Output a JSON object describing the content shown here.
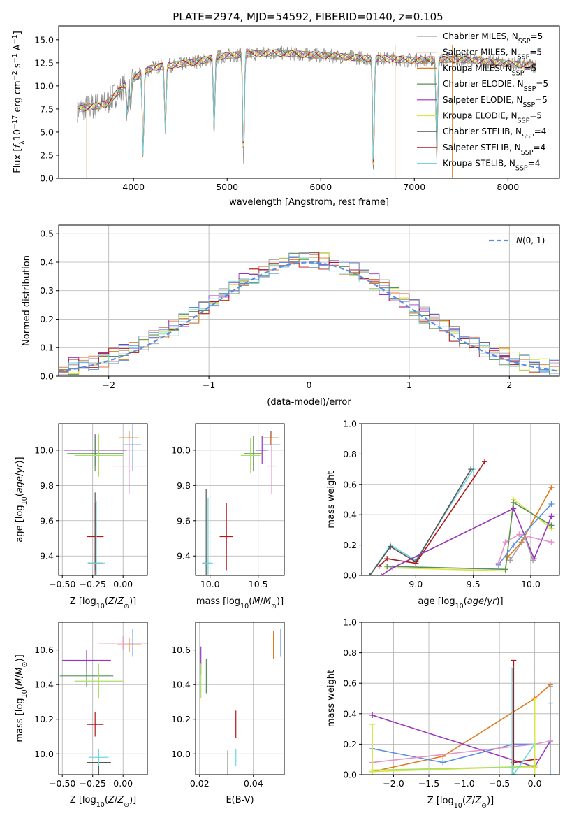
{
  "title": "PLATE=2974, MJD=54592, FIBERID=0140, z=0.105",
  "colors": {
    "chabrier_miles": "#a0a0a0",
    "salpeter_miles": "#e6734a",
    "kroupa_miles": "#e07a1f",
    "chabrier_elodie": "#5a8f5a",
    "salpeter_elodie": "#9b35c0",
    "kroupa_elodie": "#d6e645",
    "chabrier_stelib": "#555555",
    "salpeter_stelib": "#b01818",
    "kroupa_stelib": "#6fd6e0",
    "blue": "#5a8ee0",
    "pink": "#e890c8",
    "green_light": "#a8e060",
    "normal": "#5a8ee0"
  },
  "chart_data": [
    {
      "id": "spectrum",
      "type": "line",
      "title": "PLATE=2974, MJD=54592, FIBERID=0140, z=0.105",
      "xlabel": "wavelength [Angstrom, rest frame]",
      "ylabel": "Flux [f_λ 10^-17 erg cm^-2 s^-1 A^-1]",
      "xlim": [
        3200,
        8550
      ],
      "ylim": [
        0,
        16.5
      ],
      "xticks": [
        4000,
        5000,
        6000,
        7000,
        8000
      ],
      "yticks": [
        0.0,
        2.5,
        5.0,
        7.5,
        10.0,
        12.5,
        15.0
      ],
      "legend_position": "upper-right",
      "legend": [
        "Chabrier MILES, N_SSP=5",
        "Salpeter MILES, N_SSP=5",
        "Kroupa MILES, N_SSP=5",
        "Chabrier ELODIE, N_SSP=5",
        "Salpeter ELODIE, N_SSP=5",
        "Kroupa ELODIE, N_SSP=5",
        "Chabrier STELIB, N_SSP=4",
        "Salpeter STELIB, N_SSP=4",
        "Kroupa STELIB, N_SSP=4"
      ],
      "data_x_range": [
        3400,
        8300
      ],
      "continuum": [
        [
          3400,
          7.5
        ],
        [
          3700,
          8.0
        ],
        [
          3950,
          10.5
        ],
        [
          4200,
          12.0
        ],
        [
          4600,
          12.5
        ],
        [
          5000,
          13.3
        ],
        [
          5500,
          13.6
        ],
        [
          6000,
          13.3
        ],
        [
          6500,
          13.0
        ],
        [
          7000,
          12.8
        ],
        [
          7500,
          12.9
        ],
        [
          8000,
          12.4
        ],
        [
          8300,
          12.2
        ]
      ],
      "dips": [
        [
          3934,
          3.5
        ],
        [
          3969,
          3.0
        ],
        [
          4102,
          9.0
        ],
        [
          4340,
          7.0
        ],
        [
          4861,
          8.0
        ],
        [
          5175,
          11.5
        ],
        [
          6563,
          12.0
        ],
        [
          7240,
          10.5
        ]
      ],
      "spikes_to_zero": [
        3920,
        5062,
        6795,
        7405
      ],
      "left_start_salpeter": 3500
    },
    {
      "id": "residuals",
      "type": "histogram",
      "xlabel": "(data-model)/error",
      "ylabel": "Normed distribution",
      "xlim": [
        -2.5,
        2.5
      ],
      "ylim": [
        0,
        0.53
      ],
      "xticks": [
        -2,
        -1,
        0,
        1,
        2
      ],
      "yticks": [
        0.0,
        0.1,
        0.2,
        0.3,
        0.4,
        0.5
      ],
      "legend": [
        "N(0,1)"
      ],
      "legend_position": "upper-right",
      "bin_width": 0.1,
      "peak": 0.4
    },
    {
      "id": "age-vs-z",
      "type": "scatter",
      "xlabel": "Z [log10(Z/Z_sun)]",
      "ylabel": "age  [log10(age/yr)]",
      "xlim": [
        -0.53,
        0.2
      ],
      "ylim": [
        9.29,
        10.15
      ],
      "xticks": [
        -0.5,
        -0.25,
        0.0
      ],
      "yticks": [
        9.4,
        9.6,
        9.8,
        10.0
      ],
      "points": [
        {
          "x": 0.05,
          "y": 10.07,
          "xerr": 0.08,
          "yerr": 0.04,
          "c": "kroupa_miles"
        },
        {
          "x": 0.08,
          "y": 10.03,
          "xerr": 0.07,
          "yerr": 0.15,
          "c": "blue"
        },
        {
          "x": -0.23,
          "y": 10.0,
          "xerr": 0.26,
          "yerr": 0.09,
          "c": "salpeter_elodie"
        },
        {
          "x": -0.23,
          "y": 9.98,
          "xerr": 0.23,
          "yerr": 0.1,
          "c": "chabrier_elodie"
        },
        {
          "x": -0.2,
          "y": 9.97,
          "xerr": 0.2,
          "yerr": 0.12,
          "c": "green_light"
        },
        {
          "x": 0.05,
          "y": 9.91,
          "xerr": 0.15,
          "yerr": 0.16,
          "c": "pink"
        },
        {
          "x": -0.23,
          "y": 9.51,
          "xerr": 0.07,
          "yerr": 0.19,
          "c": "salpeter_stelib"
        },
        {
          "x": -0.23,
          "y": 9.36,
          "xerr": 0.06,
          "yerr": 0.4,
          "c": "chabrier_stelib"
        },
        {
          "x": -0.22,
          "y": 9.36,
          "xerr": 0.07,
          "yerr": 0.35,
          "c": "kroupa_stelib"
        }
      ]
    },
    {
      "id": "age-vs-mass",
      "type": "scatter",
      "xlabel": "mass [log10(M/M_sun)]",
      "ylabel": "",
      "xlim": [
        9.85,
        10.77
      ],
      "ylim": [
        9.29,
        10.15
      ],
      "xticks": [
        10.0,
        10.5
      ],
      "yticks": [
        9.4,
        9.6,
        9.8,
        10.0
      ],
      "points": [
        {
          "x": 10.63,
          "y": 10.07,
          "xerr": 0.08,
          "yerr": 0.04,
          "c": "kroupa_miles"
        },
        {
          "x": 10.64,
          "y": 10.03,
          "xerr": 0.09,
          "yerr": 0.08,
          "c": "blue"
        },
        {
          "x": 10.54,
          "y": 10.0,
          "xerr": 0.06,
          "yerr": 0.08,
          "c": "salpeter_elodie"
        },
        {
          "x": 10.45,
          "y": 9.98,
          "xerr": 0.1,
          "yerr": 0.1,
          "c": "chabrier_elodie"
        },
        {
          "x": 10.42,
          "y": 9.97,
          "xerr": 0.1,
          "yerr": 0.1,
          "c": "green_light"
        },
        {
          "x": 10.64,
          "y": 9.91,
          "xerr": 0.05,
          "yerr": 0.16,
          "c": "pink"
        },
        {
          "x": 10.17,
          "y": 9.51,
          "xerr": 0.07,
          "yerr": 0.19,
          "c": "salpeter_stelib"
        },
        {
          "x": 9.96,
          "y": 9.36,
          "xerr": 0.04,
          "yerr": 0.42,
          "c": "chabrier_stelib"
        },
        {
          "x": 9.98,
          "y": 9.36,
          "xerr": 0.05,
          "yerr": 0.37,
          "c": "kroupa_stelib"
        }
      ]
    },
    {
      "id": "weight-vs-age",
      "type": "line",
      "xlabel": "age  [log10(age/yr)]",
      "ylabel": "mass weight",
      "xlim": [
        8.53,
        10.25
      ],
      "ylim": [
        0,
        1.0
      ],
      "xticks": [
        9.0,
        9.5,
        10.0
      ],
      "yticks": [
        0.0,
        0.2,
        0.4,
        0.6,
        0.8,
        1.0
      ],
      "series": [
        {
          "c": "kroupa_stelib",
          "x": [
            8.6,
            8.78,
            9.0,
            9.5
          ],
          "y": [
            0.0,
            0.2,
            0.1,
            0.7
          ]
        },
        {
          "c": "chabrier_stelib",
          "x": [
            8.6,
            8.78,
            9.0,
            9.48
          ],
          "y": [
            0.0,
            0.19,
            0.09,
            0.7
          ]
        },
        {
          "c": "salpeter_stelib",
          "x": [
            8.68,
            8.75,
            9.0,
            9.6
          ],
          "y": [
            0.06,
            0.11,
            0.08,
            0.75
          ]
        },
        {
          "c": "kroupa_elodie",
          "x": [
            8.75,
            9.78,
            9.85,
            10.18
          ],
          "y": [
            0.05,
            0.03,
            0.5,
            0.31
          ]
        },
        {
          "c": "chabrier_elodie",
          "x": [
            8.75,
            9.78,
            9.85,
            10.18
          ],
          "y": [
            0.06,
            0.04,
            0.48,
            0.33
          ]
        },
        {
          "c": "salpeter_elodie",
          "x": [
            8.7,
            8.8,
            9.85,
            10.03,
            10.18
          ],
          "y": [
            0.0,
            0.05,
            0.44,
            0.11,
            0.39
          ]
        },
        {
          "c": "kroupa_miles",
          "x": [
            9.8,
            9.92,
            10.18
          ],
          "y": [
            0.12,
            0.22,
            0.58
          ]
        },
        {
          "c": "blue",
          "x": [
            9.72,
            9.85,
            10.18
          ],
          "y": [
            0.07,
            0.2,
            0.47
          ]
        },
        {
          "c": "pink",
          "x": [
            9.72,
            9.78,
            9.9,
            10.18
          ],
          "y": [
            0.08,
            0.22,
            0.27,
            0.22
          ]
        },
        {
          "c": "chabrier_miles",
          "x": [
            9.82,
            9.95,
            10.02
          ],
          "y": [
            0.1,
            0.25,
            0.1
          ]
        }
      ]
    },
    {
      "id": "mass-vs-z",
      "type": "scatter",
      "xlabel": "Z [log10(Z/Z_sun)]",
      "ylabel": "mass [log10(M/M_sun)]",
      "xlim": [
        -0.53,
        0.2
      ],
      "ylim": [
        9.88,
        10.76
      ],
      "xticks": [
        -0.5,
        -0.25,
        0.0
      ],
      "yticks": [
        10.0,
        10.2,
        10.4,
        10.6
      ],
      "points": [
        {
          "x": 0.05,
          "y": 10.63,
          "xerr": 0.1,
          "yerr": 0.04,
          "c": "kroupa_miles"
        },
        {
          "x": 0.08,
          "y": 10.64,
          "xerr": 0.06,
          "yerr": 0.08,
          "c": "blue"
        },
        {
          "x": 0.0,
          "y": 10.64,
          "xerr": 0.2,
          "yerr": 0.04,
          "c": "pink"
        },
        {
          "x": -0.3,
          "y": 10.54,
          "xerr": 0.2,
          "yerr": 0.06,
          "c": "salpeter_elodie"
        },
        {
          "x": -0.3,
          "y": 10.45,
          "xerr": 0.22,
          "yerr": 0.06,
          "c": "chabrier_elodie"
        },
        {
          "x": -0.2,
          "y": 10.42,
          "xerr": 0.2,
          "yerr": 0.1,
          "c": "green_light"
        },
        {
          "x": -0.23,
          "y": 10.17,
          "xerr": 0.07,
          "yerr": 0.07,
          "c": "salpeter_stelib"
        },
        {
          "x": -0.2,
          "y": 9.95,
          "xerr": 0.1,
          "yerr": 0.07,
          "c": "chabrier_stelib"
        },
        {
          "x": -0.2,
          "y": 9.98,
          "xerr": 0.08,
          "yerr": 0.05,
          "c": "kroupa_stelib"
        }
      ]
    },
    {
      "id": "mass-vs-ebv",
      "type": "scatter",
      "xlabel": "E(B-V)",
      "ylabel": "",
      "xlim": [
        0.0185,
        0.0515
      ],
      "ylim": [
        9.88,
        10.76
      ],
      "xticks": [
        0.02,
        0.04
      ],
      "yticks": [
        10.0,
        10.2,
        10.4,
        10.6
      ],
      "points": [
        {
          "x": 0.0475,
          "y": 10.63,
          "yerr": 0.08,
          "c": "kroupa_miles"
        },
        {
          "x": 0.0502,
          "y": 10.64,
          "yerr": 0.08,
          "c": "blue"
        },
        {
          "x": 0.0205,
          "y": 10.54,
          "yerr": 0.08,
          "c": "salpeter_elodie"
        },
        {
          "x": 0.0225,
          "y": 10.45,
          "yerr": 0.1,
          "c": "chabrier_elodie"
        },
        {
          "x": 0.0205,
          "y": 10.42,
          "yerr": 0.1,
          "c": "green_light"
        },
        {
          "x": 0.0335,
          "y": 10.17,
          "yerr": 0.08,
          "c": "salpeter_stelib"
        },
        {
          "x": 0.0305,
          "y": 9.95,
          "yerr": 0.07,
          "c": "chabrier_stelib"
        },
        {
          "x": 0.0335,
          "y": 9.98,
          "yerr": 0.05,
          "c": "kroupa_stelib"
        }
      ]
    },
    {
      "id": "weight-vs-z",
      "type": "line",
      "xlabel": "Z [log10(Z/Z_sun)]",
      "ylabel": "mass weight",
      "xlim": [
        -2.45,
        0.35
      ],
      "ylim": [
        0,
        1.0
      ],
      "xticks": [
        -2.0,
        -1.5,
        -1.0,
        -0.5,
        0.0
      ],
      "yticks": [
        0.0,
        0.2,
        0.4,
        0.6,
        0.8,
        1.0
      ],
      "series": [
        {
          "c": "kroupa_miles",
          "x": [
            -2.3,
            -1.3,
            0.0,
            0.22
          ],
          "y": [
            0.02,
            0.12,
            0.5,
            0.59
          ]
        },
        {
          "c": "salpeter_elodie",
          "x": [
            -2.3,
            0.0,
            0.22
          ],
          "y": [
            0.39,
            0.05,
            0.22
          ]
        },
        {
          "c": "blue",
          "x": [
            -2.3,
            -1.3,
            -0.3,
            0.0
          ],
          "y": [
            0.17,
            0.08,
            0.2,
            0.2
          ]
        },
        {
          "c": "pink",
          "x": [
            -2.3,
            0.0,
            0.22
          ],
          "y": [
            0.08,
            0.2,
            0.22
          ]
        },
        {
          "c": "kroupa_elodie",
          "x": [
            -2.3,
            -0.3,
            0.0
          ],
          "y": [
            0.02,
            0.05,
            0.05
          ]
        },
        {
          "c": "green_light",
          "x": [
            -2.3,
            -0.3,
            0.0
          ],
          "y": [
            0.03,
            0.05,
            0.06
          ]
        },
        {
          "c": "salpeter_stelib",
          "x": [
            -0.3,
            0.0
          ],
          "y": [
            0.08,
            0.1
          ]
        },
        {
          "c": "kroupa_stelib",
          "x": [
            -0.3,
            0.0
          ],
          "y": [
            0.0,
            0.2
          ]
        }
      ],
      "vbars": [
        {
          "c": "kroupa_elodie",
          "x": -2.3,
          "y0": 0.0,
          "y1": 0.33
        },
        {
          "c": "salpeter_stelib",
          "x": -0.3,
          "y0": 0.08,
          "y1": 0.75
        },
        {
          "c": "kroupa_stelib",
          "x": -0.32,
          "y0": 0.0,
          "y1": 0.7
        },
        {
          "c": "kroupa_elodie",
          "x": 0.0,
          "y0": 0.0,
          "y1": 0.5
        },
        {
          "c": "blue",
          "x": 0.22,
          "y0": 0.0,
          "y1": 0.47
        },
        {
          "c": "chabrier_miles",
          "x": 0.22,
          "y0": 0.04,
          "y1": 0.58
        }
      ]
    }
  ]
}
